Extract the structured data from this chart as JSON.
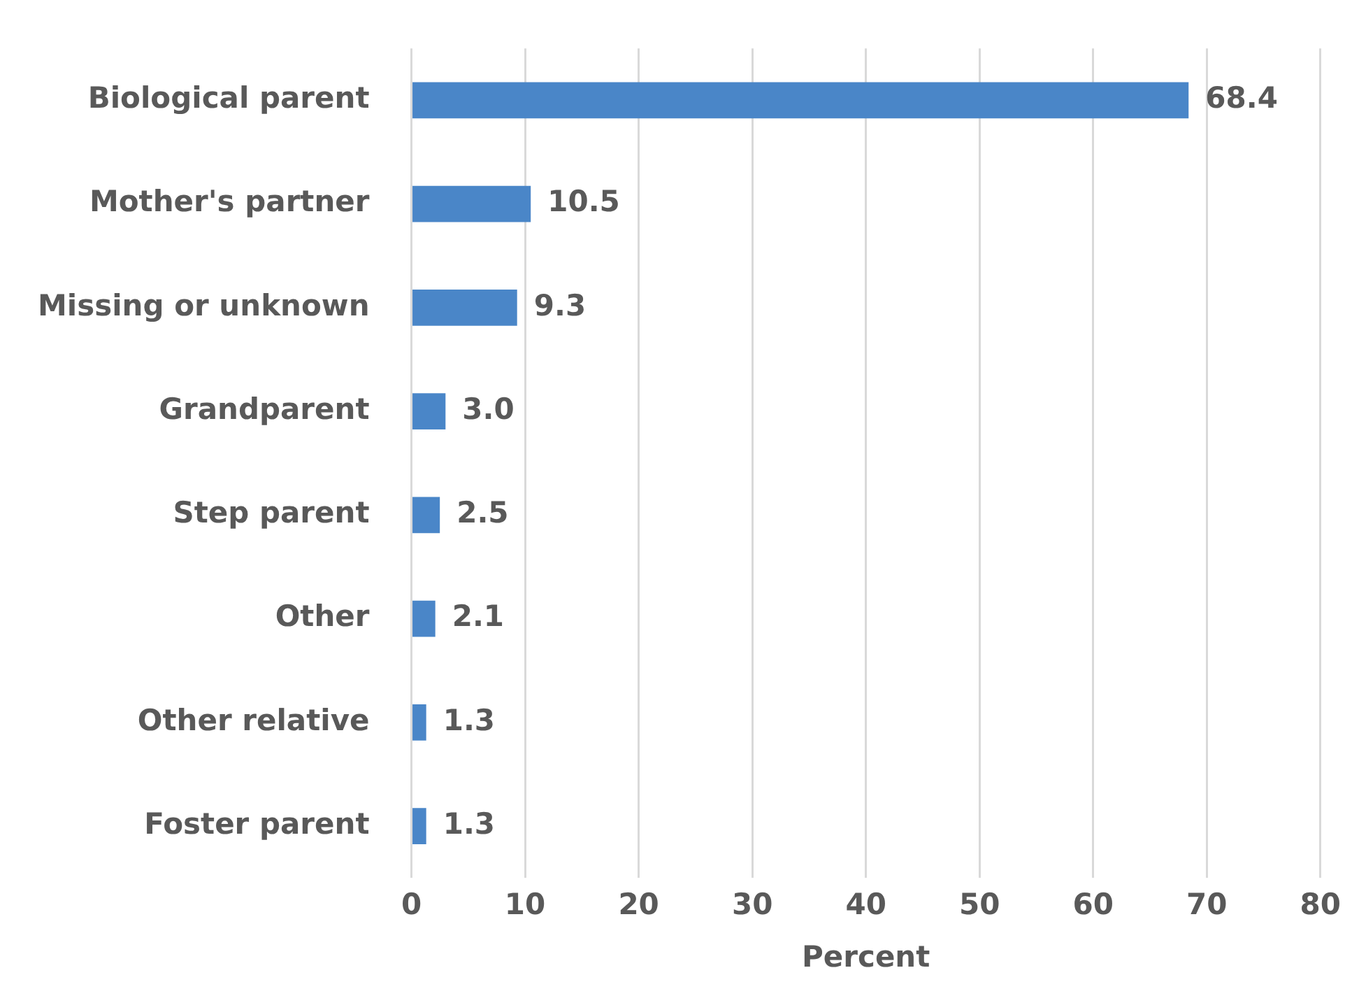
{
  "chart_data": {
    "type": "bar",
    "orientation": "horizontal",
    "xlabel": "Percent",
    "categories": [
      "Biological parent",
      "Mother's partner",
      "Missing or unknown",
      "Grandparent",
      "Step parent",
      "Other",
      "Other relative",
      "Foster parent"
    ],
    "values": [
      68.4,
      10.5,
      9.3,
      3.0,
      2.5,
      2.1,
      1.3,
      1.3
    ],
    "value_labels": [
      "68.4",
      "10.5",
      "9.3",
      "3.0",
      "2.5",
      "2.1",
      "1.3",
      "1.3"
    ],
    "color": "#4a86c8",
    "xlim": [
      0,
      80
    ],
    "xticks": [
      0,
      10,
      20,
      30,
      40,
      50,
      60,
      70,
      80
    ],
    "grid": "x",
    "legend": false
  }
}
